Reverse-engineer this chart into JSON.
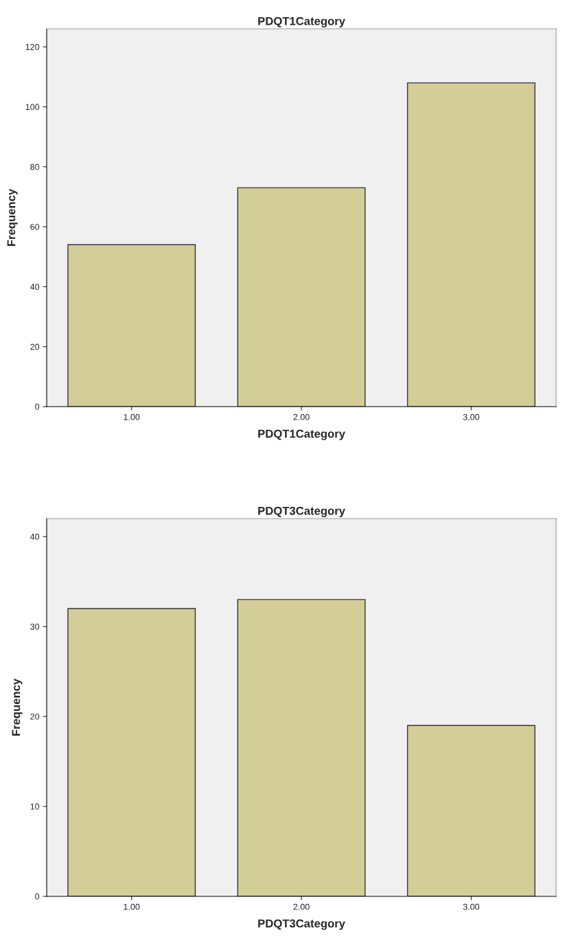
{
  "chart_data": [
    {
      "type": "bar",
      "title": "PDQT1Category",
      "xlabel": "PDQT1Category",
      "ylabel": "Frequency",
      "categories": [
        "1.00",
        "2.00",
        "3.00"
      ],
      "values": [
        54,
        73,
        108
      ],
      "color": "#d3ce97",
      "ylim": [
        0,
        126
      ],
      "yticks": [
        0,
        20,
        40,
        60,
        80,
        100,
        120
      ],
      "grid": false,
      "legend": false
    },
    {
      "type": "bar",
      "title": "PDQT3Category",
      "xlabel": "PDQT3Category",
      "ylabel": "Frequency",
      "categories": [
        "1.00",
        "2.00",
        "3.00"
      ],
      "values": [
        32,
        33,
        19
      ],
      "color": "#d3ce97",
      "ylim": [
        0,
        42
      ],
      "yticks": [
        0,
        10,
        20,
        30,
        40
      ],
      "grid": false,
      "legend": false
    }
  ]
}
